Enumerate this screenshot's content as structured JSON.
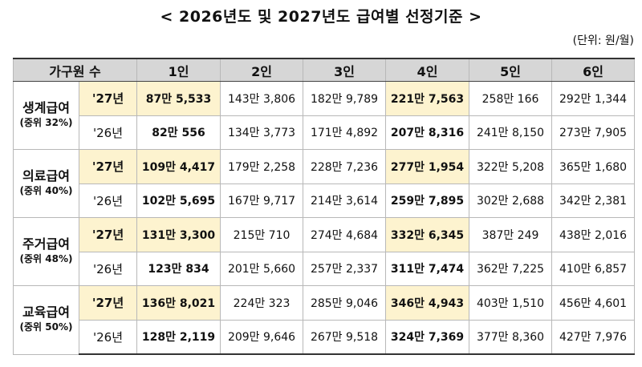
{
  "title": "< 2026년도 및 2027년도 급여별 선정기준 >",
  "unit": "(단위: 원/월)",
  "header": [
    "가구원 수",
    "1인",
    "2인",
    "3인",
    "4인",
    "5인",
    "6인"
  ],
  "groups": [
    {
      "name": "생계급여",
      "sub": "(중위 32%)",
      "rows": [
        {
          "year": "'27년",
          "values": [
            "87만 5,533",
            "143만 3,806",
            "182만 9,789",
            "221만 7,563",
            "258만 166",
            "292만 1,344"
          ]
        },
        {
          "year": "'26년",
          "values": [
            "82만 556",
            "134만 3,773",
            "171만 4,892",
            "207만 8,316",
            "241만 8,150",
            "273만 7,905"
          ]
        }
      ]
    },
    {
      "name": "의료급여",
      "sub": "(중위 40%)",
      "rows": [
        {
          "year": "'27년",
          "values": [
            "109만 4,417",
            "179만 2,258",
            "228만 7,236",
            "277만 1,954",
            "322만 5,208",
            "365만 1,680"
          ]
        },
        {
          "year": "'26년",
          "values": [
            "102만 5,695",
            "167만 9,717",
            "214만 3,614",
            "259만 7,895",
            "302만 2,688",
            "342만 2,381"
          ]
        }
      ]
    },
    {
      "name": "주거급여",
      "sub": "(중위 48%)",
      "rows": [
        {
          "year": "'27년",
          "values": [
            "131만 3,300",
            "215만 710",
            "274만 4,684",
            "332만 6,345",
            "387만 249",
            "438만 2,016"
          ]
        },
        {
          "year": "'26년",
          "values": [
            "123만 834",
            "201만 5,660",
            "257만 2,337",
            "311만 7,474",
            "362만 7,225",
            "410만 6,857"
          ]
        }
      ]
    },
    {
      "name": "교육급여",
      "sub": "(중위 50%)",
      "rows": [
        {
          "year": "'27년",
          "values": [
            "136만 8,021",
            "224만 323",
            "285만 9,046",
            "346만 4,943",
            "403만 1,510",
            "456만 4,601"
          ]
        },
        {
          "year": "'26년",
          "values": [
            "128만 2,119",
            "209만 9,646",
            "267만 9,518",
            "324만 7,369",
            "377만 8,360",
            "427만 7,976"
          ]
        }
      ]
    }
  ]
}
